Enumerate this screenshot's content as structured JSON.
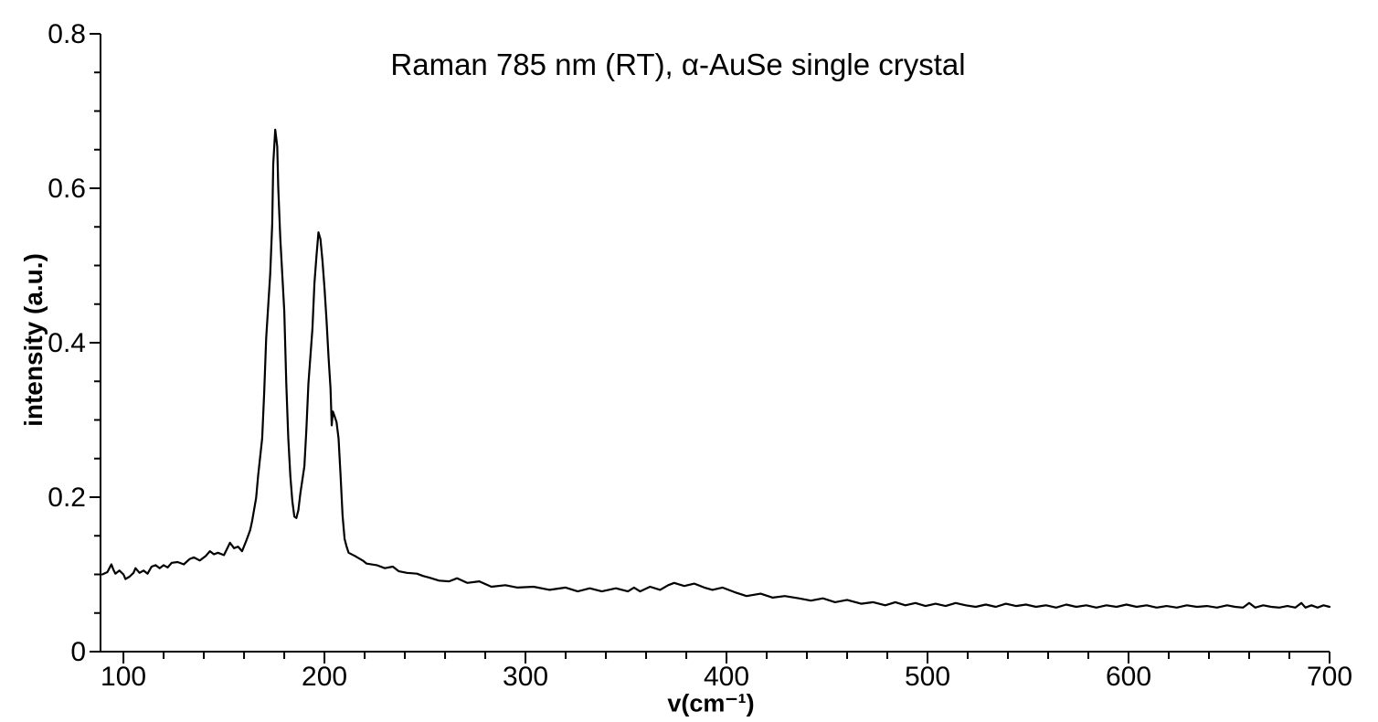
{
  "chart_data": {
    "type": "line",
    "title": "Raman 785 nm (RT), α-AuSe single crystal",
    "xlabel": "v(cm⁻¹)",
    "ylabel": "intensity (a.u.)",
    "xlim": [
      88.6,
      700
    ],
    "ylim": [
      0,
      0.8
    ],
    "xticks": [
      {
        "v": 100,
        "label": "100"
      },
      {
        "v": 200,
        "label": "200"
      },
      {
        "v": 300,
        "label": "300"
      },
      {
        "v": 400,
        "label": "400"
      },
      {
        "v": 500,
        "label": "500"
      },
      {
        "v": 600,
        "label": "600"
      },
      {
        "v": 700,
        "label": "700"
      }
    ],
    "yticks": [
      {
        "v": 0,
        "label": "0"
      },
      {
        "v": 0.2,
        "label": "0.2"
      },
      {
        "v": 0.4,
        "label": "0.4"
      },
      {
        "v": 0.6,
        "label": "0.6"
      },
      {
        "v": 0.8,
        "label": "0.8"
      }
    ],
    "minor_x_step": 20,
    "minor_y_step": 0.05,
    "grid": false,
    "legend": "none",
    "line_color": "#000000",
    "background_color": "#ffffff",
    "peaks_annotation": "main peaks ~175 and ~197 cm-1, shoulder ~205 cm-1",
    "series": [
      {
        "name": "alpha-AuSe Raman spectrum",
        "points": [
          [
            89.5,
            0.1
          ],
          [
            92,
            0.103
          ],
          [
            94,
            0.113
          ],
          [
            95,
            0.106
          ],
          [
            96,
            0.101
          ],
          [
            98,
            0.105
          ],
          [
            100,
            0.1
          ],
          [
            101,
            0.094
          ],
          [
            103,
            0.097
          ],
          [
            105,
            0.102
          ],
          [
            106,
            0.108
          ],
          [
            108,
            0.102
          ],
          [
            110,
            0.105
          ],
          [
            112,
            0.101
          ],
          [
            114,
            0.11
          ],
          [
            116,
            0.112
          ],
          [
            118,
            0.108
          ],
          [
            120,
            0.112
          ],
          [
            122,
            0.109
          ],
          [
            124,
            0.115
          ],
          [
            127,
            0.116
          ],
          [
            130,
            0.113
          ],
          [
            133,
            0.12
          ],
          [
            135,
            0.122
          ],
          [
            138,
            0.118
          ],
          [
            141,
            0.124
          ],
          [
            143,
            0.13
          ],
          [
            145,
            0.126
          ],
          [
            147,
            0.128
          ],
          [
            150,
            0.125
          ],
          [
            153,
            0.141
          ],
          [
            155,
            0.134
          ],
          [
            157,
            0.136
          ],
          [
            159,
            0.13
          ],
          [
            161,
            0.143
          ],
          [
            163,
            0.157
          ],
          [
            164,
            0.169
          ],
          [
            166,
            0.199
          ],
          [
            167,
            0.228
          ],
          [
            169,
            0.276
          ],
          [
            170,
            0.335
          ],
          [
            171,
            0.406
          ],
          [
            173,
            0.489
          ],
          [
            174,
            0.554
          ],
          [
            174.5,
            0.631
          ],
          [
            175.5,
            0.676
          ],
          [
            176.5,
            0.654
          ],
          [
            177,
            0.601
          ],
          [
            178,
            0.536
          ],
          [
            180,
            0.441
          ],
          [
            181,
            0.347
          ],
          [
            182,
            0.276
          ],
          [
            183,
            0.228
          ],
          [
            184,
            0.195
          ],
          [
            185,
            0.175
          ],
          [
            186,
            0.173
          ],
          [
            187,
            0.183
          ],
          [
            188,
            0.205
          ],
          [
            190,
            0.24
          ],
          [
            191,
            0.288
          ],
          [
            192,
            0.347
          ],
          [
            194,
            0.418
          ],
          [
            195,
            0.477
          ],
          [
            196,
            0.512
          ],
          [
            197,
            0.543
          ],
          [
            198,
            0.534
          ],
          [
            199,
            0.506
          ],
          [
            200,
            0.471
          ],
          [
            201,
            0.43
          ],
          [
            202,
            0.382
          ],
          [
            203,
            0.341
          ],
          [
            203.6,
            0.293
          ],
          [
            204.2,
            0.311
          ],
          [
            205,
            0.305
          ],
          [
            206,
            0.297
          ],
          [
            207,
            0.276
          ],
          [
            208,
            0.228
          ],
          [
            209,
            0.176
          ],
          [
            210,
            0.146
          ],
          [
            211,
            0.136
          ],
          [
            212,
            0.128
          ],
          [
            215,
            0.124
          ],
          [
            219,
            0.118
          ],
          [
            221,
            0.114
          ],
          [
            226,
            0.112
          ],
          [
            230,
            0.108
          ],
          [
            234,
            0.11
          ],
          [
            237,
            0.104
          ],
          [
            241,
            0.102
          ],
          [
            246,
            0.101
          ],
          [
            249,
            0.098
          ],
          [
            252,
            0.096
          ],
          [
            257,
            0.092
          ],
          [
            262,
            0.091
          ],
          [
            266,
            0.095
          ],
          [
            271,
            0.089
          ],
          [
            277,
            0.091
          ],
          [
            283,
            0.084
          ],
          [
            290,
            0.086
          ],
          [
            296,
            0.083
          ],
          [
            304,
            0.084
          ],
          [
            312,
            0.08
          ],
          [
            320,
            0.083
          ],
          [
            326,
            0.078
          ],
          [
            332,
            0.082
          ],
          [
            338,
            0.078
          ],
          [
            345,
            0.082
          ],
          [
            351,
            0.078
          ],
          [
            354,
            0.083
          ],
          [
            357,
            0.078
          ],
          [
            362,
            0.084
          ],
          [
            367,
            0.08
          ],
          [
            371,
            0.086
          ],
          [
            374,
            0.089
          ],
          [
            379,
            0.085
          ],
          [
            384,
            0.088
          ],
          [
            389,
            0.083
          ],
          [
            393,
            0.08
          ],
          [
            398,
            0.083
          ],
          [
            404,
            0.077
          ],
          [
            410,
            0.072
          ],
          [
            417,
            0.075
          ],
          [
            423,
            0.07
          ],
          [
            429,
            0.072
          ],
          [
            436,
            0.069
          ],
          [
            442,
            0.066
          ],
          [
            448,
            0.069
          ],
          [
            454,
            0.064
          ],
          [
            460,
            0.067
          ],
          [
            467,
            0.062
          ],
          [
            473,
            0.064
          ],
          [
            479,
            0.06
          ],
          [
            484,
            0.064
          ],
          [
            489,
            0.06
          ],
          [
            494,
            0.063
          ],
          [
            499,
            0.059
          ],
          [
            504,
            0.062
          ],
          [
            509,
            0.059
          ],
          [
            514,
            0.063
          ],
          [
            519,
            0.06
          ],
          [
            524,
            0.058
          ],
          [
            529,
            0.061
          ],
          [
            534,
            0.058
          ],
          [
            539,
            0.062
          ],
          [
            544,
            0.059
          ],
          [
            549,
            0.061
          ],
          [
            554,
            0.058
          ],
          [
            559,
            0.06
          ],
          [
            564,
            0.057
          ],
          [
            569,
            0.061
          ],
          [
            574,
            0.058
          ],
          [
            579,
            0.06
          ],
          [
            584,
            0.057
          ],
          [
            589,
            0.06
          ],
          [
            594,
            0.058
          ],
          [
            599,
            0.061
          ],
          [
            604,
            0.058
          ],
          [
            609,
            0.06
          ],
          [
            614,
            0.057
          ],
          [
            619,
            0.059
          ],
          [
            624,
            0.057
          ],
          [
            629,
            0.06
          ],
          [
            634,
            0.058
          ],
          [
            639,
            0.059
          ],
          [
            644,
            0.057
          ],
          [
            649,
            0.06
          ],
          [
            653,
            0.058
          ],
          [
            657,
            0.057
          ],
          [
            660,
            0.063
          ],
          [
            663,
            0.057
          ],
          [
            667,
            0.06
          ],
          [
            671,
            0.058
          ],
          [
            675,
            0.057
          ],
          [
            679,
            0.059
          ],
          [
            683,
            0.057
          ],
          [
            686,
            0.063
          ],
          [
            688,
            0.057
          ],
          [
            691,
            0.06
          ],
          [
            694,
            0.057
          ],
          [
            697,
            0.06
          ],
          [
            700,
            0.058
          ]
        ]
      }
    ]
  }
}
